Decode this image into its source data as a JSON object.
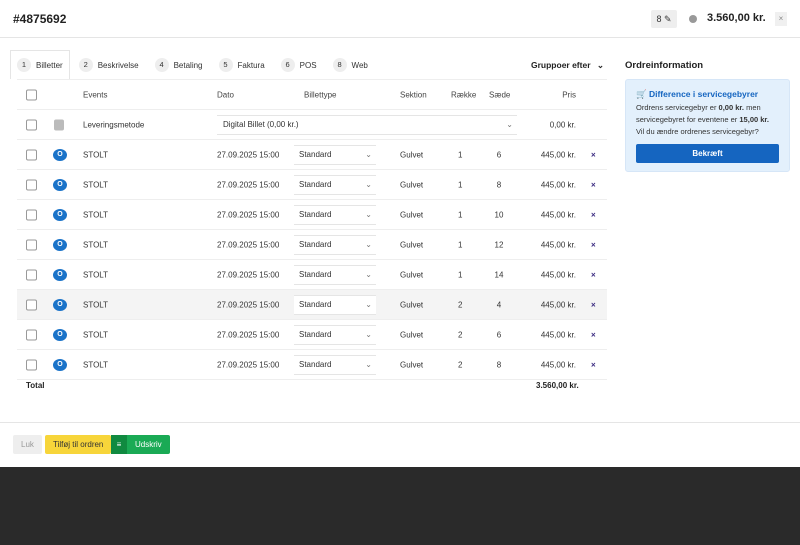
{
  "header": {
    "order_id": "#4875692",
    "ticket_count": "8",
    "total": "3.560,00 kr.",
    "close": "×"
  },
  "tabs": [
    {
      "num": "1",
      "label": "Billetter"
    },
    {
      "num": "2",
      "label": "Beskrivelse"
    },
    {
      "num": "4",
      "label": "Betaling"
    },
    {
      "num": "5",
      "label": "Faktura"
    },
    {
      "num": "6",
      "label": "POS"
    },
    {
      "num": "8",
      "label": "Web"
    }
  ],
  "group_by": "Gruppoer efter",
  "columns": {
    "events": "Events",
    "date": "Dato",
    "type": "Billettype",
    "section": "Sektion",
    "row": "Række",
    "seat": "Sæde",
    "price": "Pris"
  },
  "delivery": {
    "label": "Leveringsmetode",
    "value": "Digital Billet (0,00 kr.)",
    "price": "0,00 kr."
  },
  "rows": [
    {
      "badge": "O",
      "event": "STOLT",
      "date": "27.09.2025 15:00",
      "type": "Standard",
      "section": "Gulvet",
      "row": "1",
      "seat": "6",
      "price": "445,00 kr."
    },
    {
      "badge": "O",
      "event": "STOLT",
      "date": "27.09.2025 15:00",
      "type": "Standard",
      "section": "Gulvet",
      "row": "1",
      "seat": "8",
      "price": "445,00 kr."
    },
    {
      "badge": "O",
      "event": "STOLT",
      "date": "27.09.2025 15:00",
      "type": "Standard",
      "section": "Gulvet",
      "row": "1",
      "seat": "10",
      "price": "445,00 kr."
    },
    {
      "badge": "O",
      "event": "STOLT",
      "date": "27.09.2025 15:00",
      "type": "Standard",
      "section": "Gulvet",
      "row": "1",
      "seat": "12",
      "price": "445,00 kr."
    },
    {
      "badge": "O",
      "event": "STOLT",
      "date": "27.09.2025 15:00",
      "type": "Standard",
      "section": "Gulvet",
      "row": "1",
      "seat": "14",
      "price": "445,00 kr."
    },
    {
      "badge": "O",
      "event": "STOLT",
      "date": "27.09.2025 15:00",
      "type": "Standard",
      "section": "Gulvet",
      "row": "2",
      "seat": "4",
      "price": "445,00 kr."
    },
    {
      "badge": "O",
      "event": "STOLT",
      "date": "27.09.2025 15:00",
      "type": "Standard",
      "section": "Gulvet",
      "row": "2",
      "seat": "6",
      "price": "445,00 kr."
    },
    {
      "badge": "O",
      "event": "STOLT",
      "date": "27.09.2025 15:00",
      "type": "Standard",
      "section": "Gulvet",
      "row": "2",
      "seat": "8",
      "price": "445,00 kr."
    }
  ],
  "total": {
    "label": "Total",
    "value": "3.560,00 kr."
  },
  "sidebar": {
    "title": "Ordreinformation",
    "alert_title": "Difference i servicegebyrer",
    "text1": "Ordrens servicegebyr er ",
    "fee1": "0,00 kr.",
    "text2": " men servicegebyret for eventene er ",
    "fee2": "15,00 kr.",
    "text3": " Vil du ændre ordrenes servicegebyr?",
    "confirm": "Bekræft"
  },
  "footer": {
    "close": "Luk",
    "add": "Tilføj til ordren",
    "print": "Udskriv"
  },
  "colors": {
    "primary": "#1565c0",
    "badge": "#1a73c9",
    "add": "#f7d53a",
    "print": "#1aaa55"
  }
}
